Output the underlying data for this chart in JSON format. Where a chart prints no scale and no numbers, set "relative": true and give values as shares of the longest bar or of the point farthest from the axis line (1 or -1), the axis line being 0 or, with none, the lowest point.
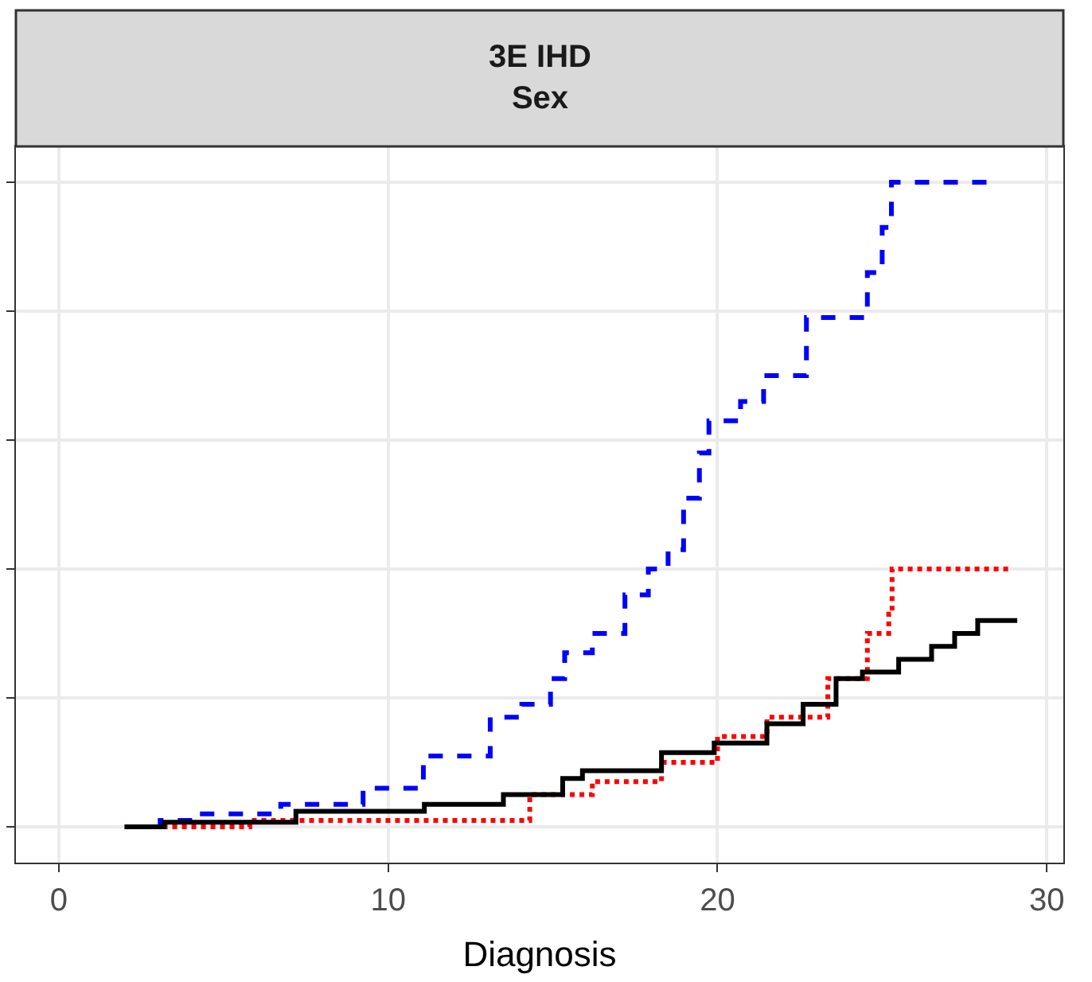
{
  "chart_data": {
    "type": "step",
    "title": "3E IHD\nSex",
    "xlabel": "Diagnosis",
    "relative": true,
    "xlim": [
      -1.3,
      30.5
    ],
    "xticks": [
      0,
      10,
      20,
      30
    ],
    "grid": true,
    "series": [
      {
        "color": "#0000ff",
        "line_style": "dashed",
        "x": [
          2.07,
          3.08,
          4.28,
          6.74,
          9.24,
          11.07,
          13.1,
          14.06,
          14.93,
          15.36,
          16.2,
          17.19,
          17.9,
          18.5,
          18.97,
          19.45,
          19.74,
          20.7,
          21.4,
          22.7,
          24.55,
          25.0,
          25.28,
          28.6
        ],
        "values": [
          0,
          0.01,
          0.02,
          0.035,
          0.06,
          0.11,
          0.17,
          0.19,
          0.23,
          0.27,
          0.3,
          0.36,
          0.4,
          0.43,
          0.51,
          0.58,
          0.63,
          0.66,
          0.7,
          0.79,
          0.86,
          0.93,
          1,
          1
        ]
      },
      {
        "color": "#ff0000",
        "line_style": "dotted",
        "x": [
          2.0,
          5.8,
          14.3,
          16.2,
          18.3,
          20.0,
          21.5,
          23.35,
          24.55,
          25.2,
          25.3,
          28.9
        ],
        "values": [
          0,
          0.01,
          0.05,
          0.07,
          0.1,
          0.14,
          0.17,
          0.23,
          0.3,
          0.33,
          0.4,
          0.4
        ]
      },
      {
        "color": "#000000",
        "line_style": "solid",
        "x": [
          2.0,
          3.2,
          7.2,
          11.1,
          13.5,
          15.3,
          15.9,
          18.3,
          19.9,
          21.5,
          22.6,
          23.6,
          24.4,
          25.5,
          26.5,
          27.2,
          27.9,
          29.1
        ],
        "values": [
          0,
          0.007,
          0.024,
          0.035,
          0.05,
          0.075,
          0.087,
          0.115,
          0.13,
          0.16,
          0.19,
          0.23,
          0.24,
          0.26,
          0.28,
          0.3,
          0.32,
          0.32
        ]
      }
    ]
  }
}
